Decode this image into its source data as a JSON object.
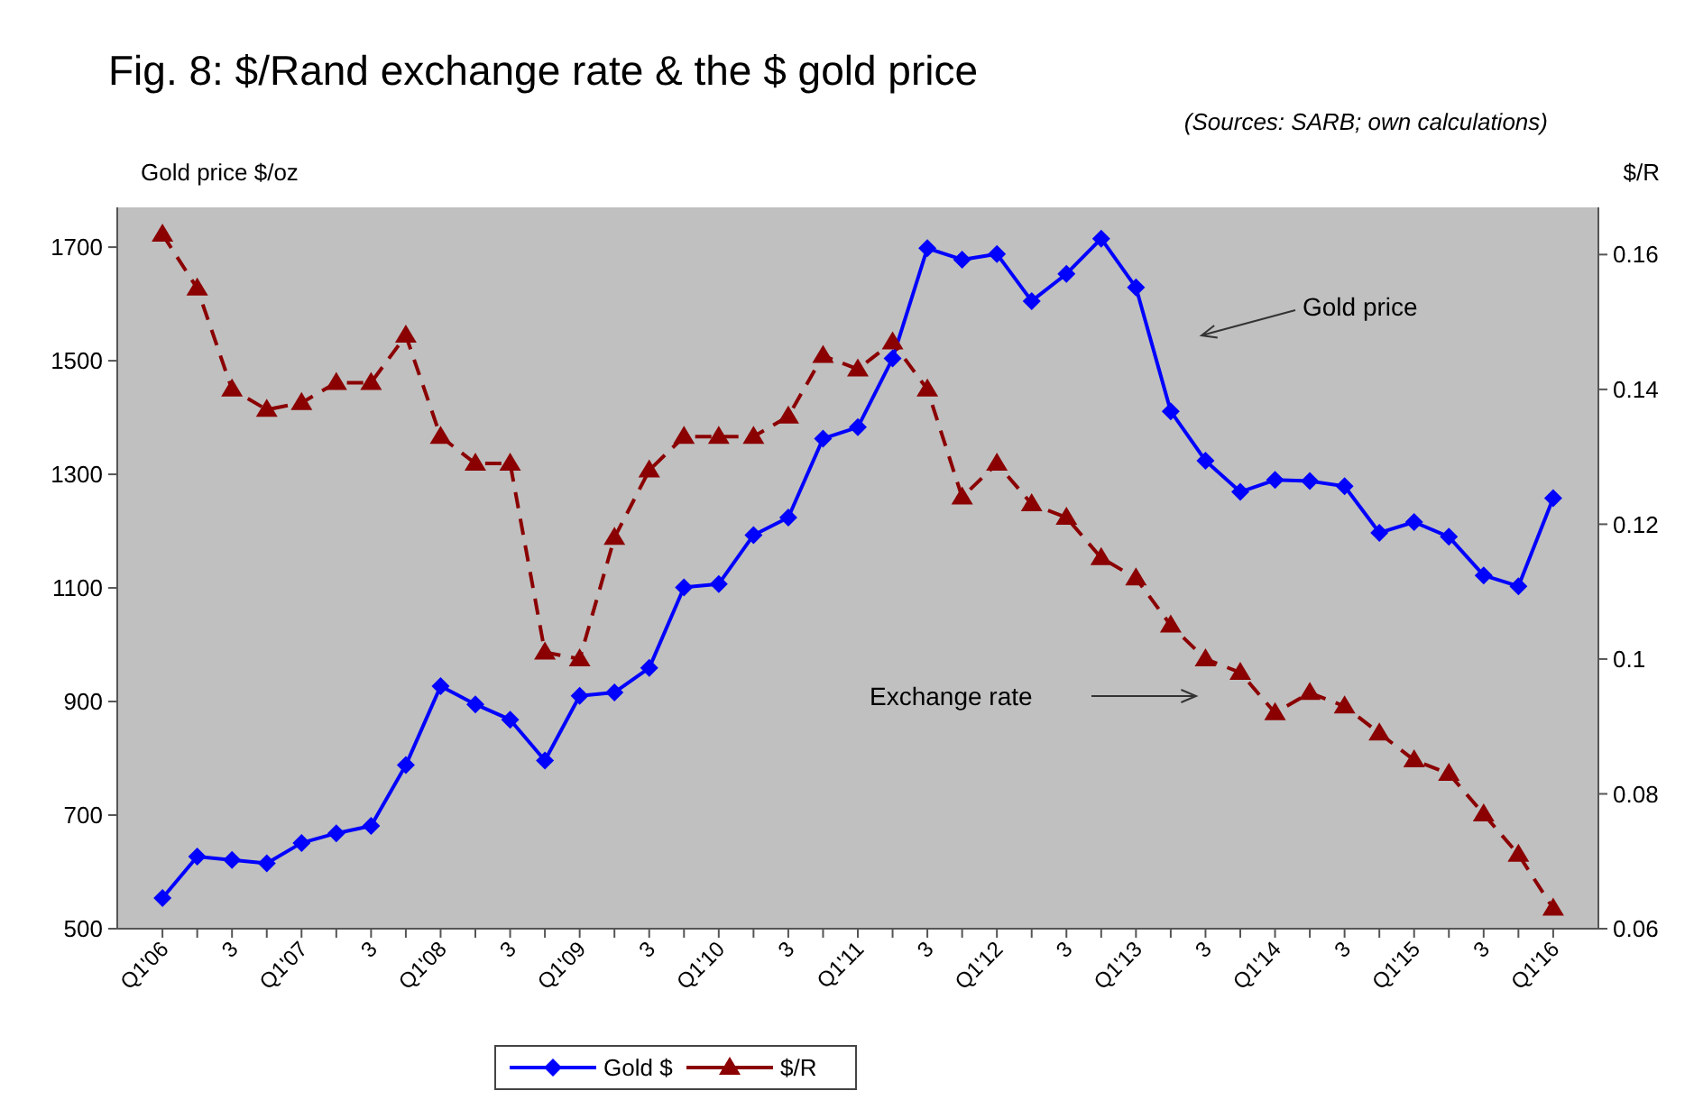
{
  "chart_data": {
    "type": "line",
    "title": "Fig. 8: $/Rand exchange rate & the $ gold price",
    "subtitle": "(Sources: SARB; own calculations)",
    "ylabel": "Gold price $/oz",
    "y2label": "$/R",
    "categories": [
      "Q1'06",
      null,
      "3",
      null,
      "Q1'07",
      null,
      "3",
      null,
      "Q1'08",
      null,
      "3",
      null,
      "Q1'09",
      null,
      "3",
      null,
      "Q1'10",
      null,
      "3",
      null,
      "Q1'11",
      null,
      "3",
      null,
      "Q1'12",
      null,
      "3",
      null,
      "Q1'13",
      null,
      "3",
      null,
      "Q1'14",
      null,
      "3",
      null,
      "Q1'15",
      null,
      "3",
      null,
      "Q1'16"
    ],
    "series": [
      {
        "name": "Gold $",
        "color": "#0000ff",
        "marker": "diamond",
        "line_style": "solid",
        "values": [
          554,
          627,
          621,
          615,
          651,
          668,
          681,
          788,
          927,
          895,
          868,
          796,
          910,
          916,
          959,
          1101,
          1107,
          1193,
          1224,
          1363,
          1383,
          1504,
          1698,
          1678,
          1688,
          1605,
          1653,
          1715,
          1629,
          1411,
          1324,
          1269,
          1290,
          1288,
          1279,
          1197,
          1216,
          1190,
          1122,
          1103,
          1258
        ]
      },
      {
        "name": "$/R",
        "color": "#8b0000",
        "marker": "triangle",
        "line_style": "dashed",
        "axis": "y2",
        "values": [
          0.163,
          0.155,
          0.14,
          0.137,
          0.138,
          0.141,
          0.141,
          0.148,
          0.133,
          0.129,
          0.129,
          0.101,
          0.1,
          0.118,
          0.128,
          0.133,
          0.133,
          0.133,
          0.136,
          0.145,
          0.143,
          0.147,
          0.14,
          0.124,
          0.129,
          0.123,
          0.121,
          0.115,
          0.112,
          0.105,
          0.1,
          0.098,
          0.092,
          0.095,
          0.093,
          0.089,
          0.085,
          0.083,
          0.077,
          0.071,
          0.063
        ]
      }
    ],
    "ylim": [
      500,
      1770
    ],
    "yticks": [
      500,
      700,
      900,
      1100,
      1300,
      1500,
      1700
    ],
    "y2lim": [
      0.06,
      0.167
    ],
    "y2ticks": [
      0.06,
      0.08,
      0.1,
      0.12,
      0.14,
      0.16
    ],
    "annotations": [
      "Gold price",
      "Exchange rate"
    ],
    "legend": "bottom",
    "grid": false
  }
}
